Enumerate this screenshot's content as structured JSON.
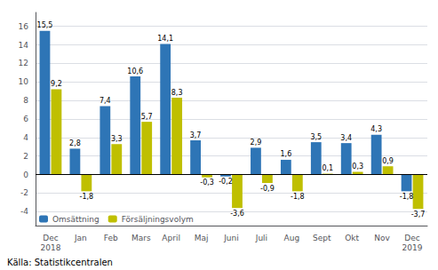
{
  "chart_data": {
    "type": "bar",
    "categories": [
      "Dec\n2018",
      "Jan",
      "Feb",
      "Mars",
      "April",
      "Maj",
      "Juni",
      "Juli",
      "Aug",
      "Sept",
      "Okt",
      "Nov",
      "Dec\n2019"
    ],
    "series": [
      {
        "name": "Omsättning",
        "color": "#2E75B6",
        "values": [
          15.5,
          2.8,
          7.4,
          10.6,
          14.1,
          3.7,
          -0.2,
          2.9,
          1.6,
          3.5,
          3.4,
          4.3,
          -1.8
        ],
        "value_labels": [
          "15,5",
          "2,8",
          "7,4",
          "10,6",
          "14,1",
          "3,7",
          "-0,2",
          "2,9",
          "1,6",
          "3,5",
          "3,4",
          "4,3",
          "-1,8"
        ]
      },
      {
        "name": "Försäljningsvolym",
        "color": "#BFBF00",
        "values": [
          9.2,
          -1.8,
          3.3,
          5.7,
          8.3,
          -0.3,
          -3.6,
          -0.9,
          -1.8,
          0.1,
          0.3,
          0.9,
          -3.7
        ],
        "value_labels": [
          "9,2",
          "-1,8",
          "3,3",
          "5,7",
          "8,3",
          "-0,3",
          "-3,6",
          "-0,9",
          "-1,8",
          "0,1",
          "0,3",
          "0,9",
          "-3,7"
        ]
      }
    ],
    "ylim": [
      -5.5,
      17.5
    ],
    "yticks": [
      -4,
      -2,
      0,
      2,
      4,
      6,
      8,
      10,
      12,
      14,
      16
    ],
    "grid": true,
    "legend": "lower left",
    "data_labels": true,
    "annotations": [
      "Källa: Statistikcentralen"
    ]
  }
}
